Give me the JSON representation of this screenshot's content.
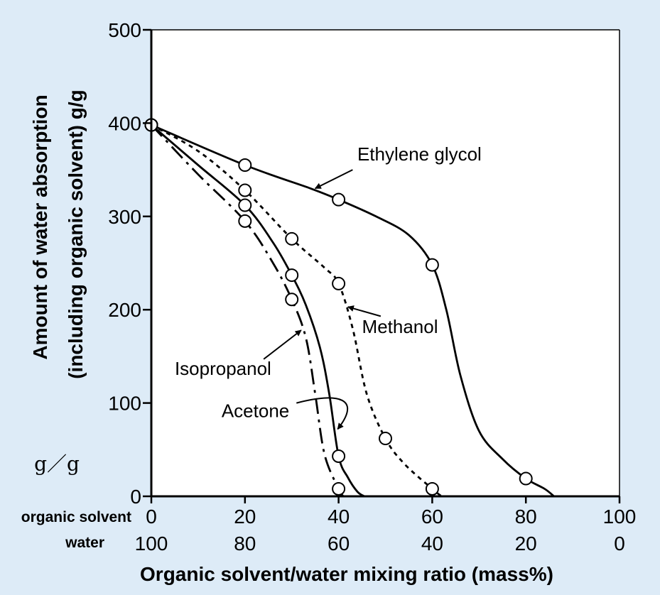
{
  "chart_data": {
    "type": "line",
    "ylabel_line1": "Amount of water absorption",
    "ylabel_line2": "(including organic solvent)  g/g",
    "xlabel": "Organic solvent/water  mixing ratio (mass%)",
    "unit_note": "g／g",
    "row_labels": {
      "organic": "organic solvent",
      "water": "water"
    },
    "x_ticks_organic": [
      "0",
      "20",
      "40",
      "60",
      "80",
      "100"
    ],
    "x_ticks_water": [
      "100",
      "80",
      "60",
      "40",
      "20",
      "0"
    ],
    "y_ticks": [
      "0",
      "100",
      "200",
      "300",
      "400",
      "500"
    ],
    "xlim": [
      0,
      100
    ],
    "ylim": [
      0,
      500
    ],
    "grid": false,
    "legend": "none",
    "series": [
      {
        "name": "Ethylene glycol",
        "dash": "solid",
        "points": [
          [
            0,
            398
          ],
          [
            20,
            355
          ],
          [
            40,
            318
          ],
          [
            60,
            248
          ],
          [
            80,
            19
          ]
        ],
        "curve": [
          [
            0,
            398
          ],
          [
            20,
            355
          ],
          [
            34,
            330
          ],
          [
            40,
            318
          ],
          [
            48,
            300
          ],
          [
            55,
            280
          ],
          [
            60,
            248
          ],
          [
            63,
            200
          ],
          [
            66,
            130
          ],
          [
            70,
            70
          ],
          [
            75,
            40
          ],
          [
            80,
            19
          ],
          [
            84,
            8
          ],
          [
            86,
            0
          ]
        ]
      },
      {
        "name": "Methanol",
        "dash": "dotted",
        "points": [
          [
            0,
            398
          ],
          [
            20,
            328
          ],
          [
            30,
            276
          ],
          [
            40,
            228
          ],
          [
            50,
            62
          ],
          [
            60,
            8
          ]
        ],
        "curve": [
          [
            0,
            398
          ],
          [
            10,
            370
          ],
          [
            20,
            328
          ],
          [
            30,
            276
          ],
          [
            37,
            245
          ],
          [
            40,
            228
          ],
          [
            43,
            180
          ],
          [
            46,
            110
          ],
          [
            50,
            62
          ],
          [
            54,
            35
          ],
          [
            60,
            8
          ],
          [
            62,
            0
          ]
        ]
      },
      {
        "name": "Acetone",
        "dash": "solid",
        "points": [
          [
            0,
            398
          ],
          [
            20,
            312
          ],
          [
            30,
            237
          ],
          [
            40,
            43
          ]
        ],
        "curve": [
          [
            0,
            398
          ],
          [
            10,
            355
          ],
          [
            20,
            312
          ],
          [
            26,
            272
          ],
          [
            30,
            237
          ],
          [
            33,
            205
          ],
          [
            36,
            160
          ],
          [
            38,
            110
          ],
          [
            40,
            43
          ],
          [
            42,
            20
          ],
          [
            44,
            5
          ],
          [
            45.5,
            0
          ]
        ]
      },
      {
        "name": "Isopropanol",
        "dash": "dashdot",
        "points": [
          [
            0,
            398
          ],
          [
            20,
            295
          ],
          [
            30,
            211
          ],
          [
            40,
            8
          ]
        ],
        "curve": [
          [
            0,
            398
          ],
          [
            10,
            345
          ],
          [
            20,
            295
          ],
          [
            26,
            250
          ],
          [
            30,
            211
          ],
          [
            33,
            170
          ],
          [
            35,
            110
          ],
          [
            37,
            45
          ],
          [
            40,
            8
          ],
          [
            41,
            0
          ]
        ]
      }
    ],
    "annotations": [
      {
        "text": "Ethylene glycol",
        "at": [
          44,
          360
        ],
        "arrow_to": [
          35,
          330
        ]
      },
      {
        "text": "Methanol",
        "at": [
          45,
          175
        ],
        "arrow_to": [
          42,
          203
        ]
      },
      {
        "text": "Isopropanol",
        "at": [
          5,
          130
        ],
        "arrow_to": [
          32,
          178
        ]
      },
      {
        "text": "Acetone",
        "at": [
          15,
          85
        ],
        "arrow_to": [
          39.5,
          72
        ]
      }
    ]
  }
}
